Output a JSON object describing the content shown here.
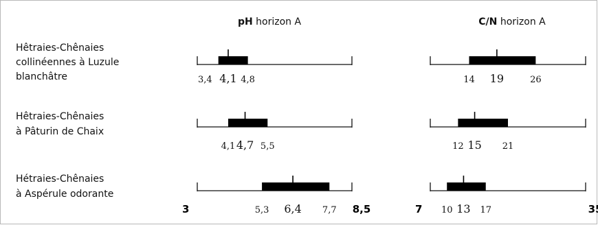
{
  "chart_data": {
    "type": "range",
    "panels": [
      {
        "key": "ph",
        "header_bold": "pH",
        "header_rest": " horizon A",
        "axis_min": 3,
        "axis_max": 8.5,
        "axis_min_label": "3",
        "axis_max_label": "8,5",
        "rows": [
          {
            "min": 3.4,
            "q1": 3.75,
            "median": 4.1,
            "q3": 4.8,
            "labels": [
              "3,4",
              "4,1",
              "4,8"
            ]
          },
          {
            "min": 4.1,
            "q1": 4.1,
            "median": 4.7,
            "q3": 5.5,
            "labels": [
              "4,1",
              "4,7",
              "5,5"
            ]
          },
          {
            "min": 5.3,
            "q1": 5.3,
            "median": 6.4,
            "q3": 7.7,
            "labels": [
              "5,3",
              "6,4",
              "7,7"
            ]
          }
        ]
      },
      {
        "key": "cn",
        "header_bold": "C/N",
        "header_rest": " horizon A",
        "axis_min": 7,
        "axis_max": 35,
        "axis_min_label": "7",
        "axis_max_label": "35",
        "rows": [
          {
            "min": 14,
            "q1": 14,
            "median": 19,
            "q3": 26,
            "labels": [
              "14",
              "19",
              "26"
            ]
          },
          {
            "min": 12,
            "q1": 12,
            "median": 15,
            "q3": 21,
            "labels": [
              "12",
              "15",
              "21"
            ]
          },
          {
            "min": 10,
            "q1": 10,
            "median": 13,
            "q3": 17,
            "labels": [
              "10",
              "13",
              "17"
            ]
          }
        ]
      }
    ],
    "categories": [
      [
        "Hêtraies-Chênaies",
        "collinéennes à Luzule",
        "blanchâtre"
      ],
      [
        "Hêtraies-Chênaies",
        "à Pâturin de Chaix"
      ],
      [
        "Hétraies-Chênaies",
        "à Aspérule odorante"
      ]
    ]
  }
}
